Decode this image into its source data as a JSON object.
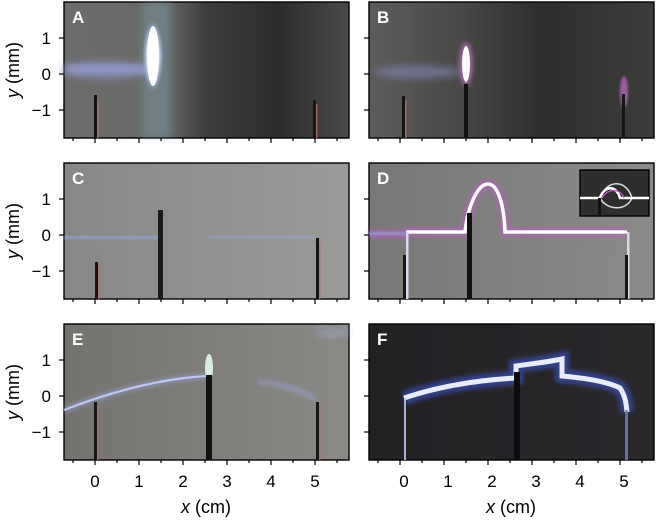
{
  "figure": {
    "panels": [
      {
        "id": "A",
        "label": "A"
      },
      {
        "id": "B",
        "label": "B"
      },
      {
        "id": "C",
        "label": "C"
      },
      {
        "id": "D",
        "label": "D"
      },
      {
        "id": "E",
        "label": "E"
      },
      {
        "id": "F",
        "label": "F"
      }
    ],
    "y_axis_label": {
      "var": "y",
      "unit": "(mm)"
    },
    "x_axis_label": {
      "var": "x",
      "unit": "(cm)"
    },
    "y_ticks": [
      "1",
      "0",
      "−1"
    ],
    "x_ticks": [
      "0",
      "1",
      "2",
      "3",
      "4",
      "5"
    ]
  }
}
